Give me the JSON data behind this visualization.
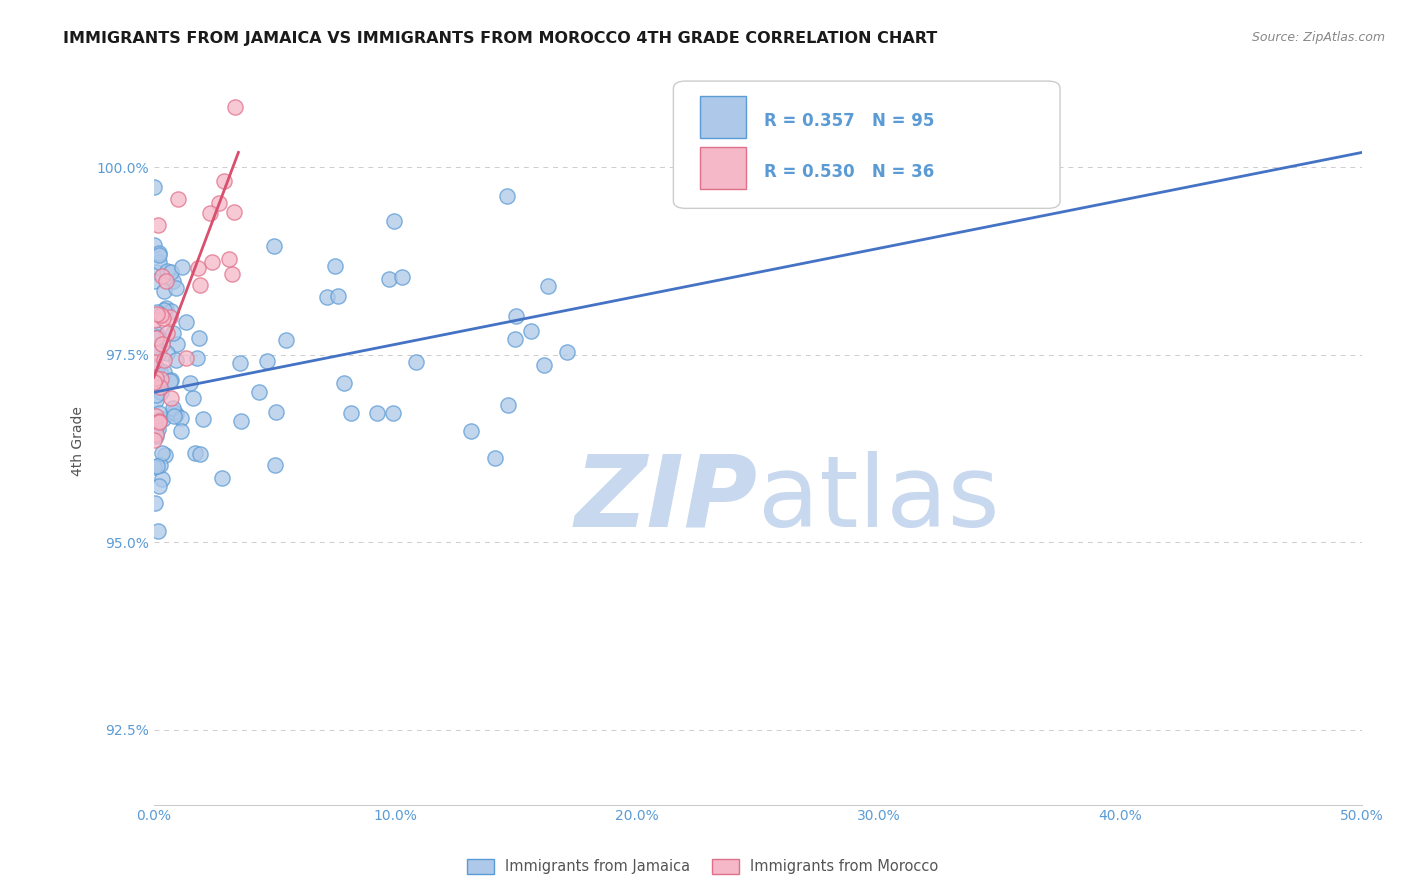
{
  "title": "IMMIGRANTS FROM JAMAICA VS IMMIGRANTS FROM MOROCCO 4TH GRADE CORRELATION CHART",
  "source_text": "Source: ZipAtlas.com",
  "ylabel": "4th Grade",
  "xlim": [
    0.0,
    50.0
  ],
  "ylim": [
    91.5,
    101.2
  ],
  "yticks": [
    92.5,
    95.0,
    97.5,
    100.0
  ],
  "ytick_labels": [
    "92.5%",
    "95.0%",
    "97.5%",
    "100.0%"
  ],
  "xticks": [
    0.0,
    10.0,
    20.0,
    30.0,
    40.0,
    50.0
  ],
  "xtick_labels": [
    "0.0%",
    "10.0%",
    "20.0%",
    "30.0%",
    "40.0%",
    "50.0%"
  ],
  "jamaica_color": "#adc8e8",
  "morocco_color": "#f5b8c8",
  "jamaica_edge_color": "#5b9bd5",
  "morocco_edge_color": "#e0708a",
  "trend_jamaica_color": "#4472c4",
  "trend_morocco_color": "#d94f6e",
  "legend_R_jamaica": "R = 0.357",
  "legend_N_jamaica": "N = 95",
  "legend_R_morocco": "R = 0.530",
  "legend_N_morocco": "N = 36",
  "legend_label_jamaica": "Immigrants from Jamaica",
  "legend_label_morocco": "Immigrants from Morocco",
  "watermark_zip": "ZIP",
  "watermark_atlas": "atlas",
  "watermark_color": "#c8d8ee",
  "background_color": "#ffffff",
  "title_color": "#1a1a1a",
  "axis_label_color": "#555555",
  "tick_color": "#5b9bd5",
  "grid_color": "#c0c0c0",
  "title_fontsize": 11.5,
  "axis_fontsize": 10,
  "tick_fontsize": 10,
  "legend_fontsize": 12
}
